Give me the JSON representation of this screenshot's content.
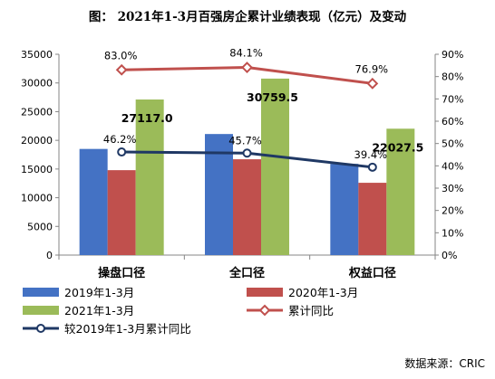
{
  "chart_data": {
    "type": "bar",
    "title": "图：  2021年1-3月百强房企累计业绩表现（亿元）及变动",
    "categories": [
      "操盘口径",
      "全口径",
      "权益口径"
    ],
    "series": [
      {
        "name": "2019年1-3月",
        "type": "bar",
        "axis": "left",
        "color": "#4472C4",
        "values": [
          18500,
          21100,
          15900
        ]
      },
      {
        "name": "2020年1-3月",
        "type": "bar",
        "axis": "left",
        "color": "#C0504D",
        "values": [
          14800,
          16700,
          12600
        ]
      },
      {
        "name": "2021年1-3月",
        "type": "bar",
        "axis": "left",
        "color": "#9BBB59",
        "values": [
          27117.0,
          30759.5,
          22027.5
        ]
      },
      {
        "name": "累计同比",
        "type": "line",
        "axis": "right",
        "color": "#C0504D",
        "marker": "diamond",
        "values": [
          83.0,
          84.1,
          76.9
        ]
      },
      {
        "name": "较2019年1-3月累计同比",
        "type": "line",
        "axis": "right",
        "color": "#1F3864",
        "marker": "circle",
        "values": [
          46.2,
          45.7,
          39.4
        ]
      }
    ],
    "bar_labels": [
      "27117.0",
      "30759.5",
      "22027.5"
    ],
    "pct_labels_top": [
      "83.0%",
      "84.1%",
      "76.9%"
    ],
    "pct_labels_bottom": [
      "46.2%",
      "45.7%",
      "39.4%"
    ],
    "y_left": {
      "min": 0,
      "max": 35000,
      "ticks": [
        "0",
        "5000",
        "10000",
        "15000",
        "20000",
        "25000",
        "30000",
        "35000"
      ]
    },
    "y_right": {
      "min": 0,
      "max": 90,
      "ticks": [
        "0%",
        "10%",
        "20%",
        "30%",
        "40%",
        "50%",
        "60%",
        "70%",
        "80%",
        "90%"
      ]
    },
    "grid": false,
    "legend_position": "bottom"
  },
  "source": "数据来源：CRIC"
}
